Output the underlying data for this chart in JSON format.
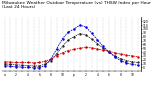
{
  "title": "Milwaukee Weather Outdoor Temperature (vs) THSW Index per Hour (Last 24 Hours)",
  "title_fontsize": 3.2,
  "background_color": "#ffffff",
  "grid_color": "#888888",
  "hours": [
    0,
    1,
    2,
    3,
    4,
    5,
    6,
    7,
    8,
    9,
    10,
    11,
    12,
    13,
    14,
    15,
    16,
    17,
    18,
    19,
    20,
    21,
    22,
    23
  ],
  "temp": [
    15,
    14,
    13,
    13,
    13,
    12,
    13,
    16,
    22,
    31,
    38,
    44,
    47,
    50,
    52,
    51,
    48,
    45,
    42,
    38,
    35,
    32,
    30,
    28
  ],
  "thsw": [
    5,
    3,
    2,
    1,
    0,
    -1,
    -1,
    5,
    22,
    48,
    75,
    92,
    100,
    110,
    105,
    90,
    72,
    55,
    40,
    28,
    18,
    12,
    8,
    6
  ],
  "feels": [
    10,
    8,
    7,
    6,
    5,
    4,
    4,
    9,
    18,
    36,
    55,
    72,
    80,
    88,
    85,
    74,
    62,
    50,
    40,
    30,
    23,
    18,
    15,
    13
  ],
  "temp_color": "#cc0000",
  "thsw_color": "#0000dd",
  "feels_color": "#111111",
  "ylim": [
    -10,
    130
  ],
  "right_ticks": [
    0,
    10,
    20,
    30,
    40,
    50,
    60,
    70,
    80,
    90,
    100,
    110,
    120
  ],
  "xlim": [
    -0.5,
    23.5
  ]
}
